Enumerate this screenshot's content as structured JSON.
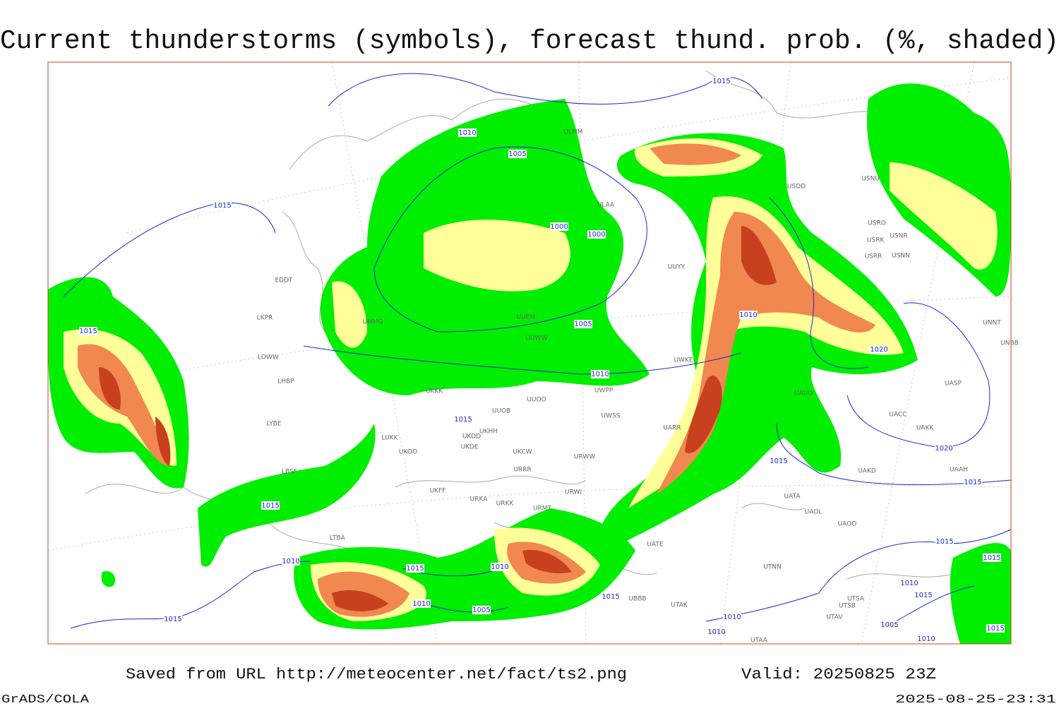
{
  "header": {
    "title": "Current thunderstorms (symbols), forecast thund. prob. (%, shaded)"
  },
  "footer": {
    "source": "Saved from URL http://meteocenter.net/fact/ts2.png",
    "valid": "Valid: 20250825 23Z",
    "software": "GrADS/COLA",
    "timestamp": "2025-08-25-23:31"
  },
  "stations": [
    "ULMM",
    "ULAA",
    "UUYY",
    "UUEM",
    "UUWW",
    "UMMG",
    "EDDT",
    "LKPR",
    "LOWW",
    "LHBP",
    "LYBE",
    "LBSF",
    "LTBA",
    "UKKK",
    "UUOB",
    "UUOO",
    "LUKK",
    "UKOO",
    "UKHH",
    "UKDD",
    "UKDE",
    "UKCW",
    "URRR",
    "UKFF",
    "URKA",
    "URKK",
    "URWI",
    "URMT",
    "UWPP",
    "UWSS",
    "URWW",
    "UWKE",
    "UARR",
    "UATE",
    "UATA",
    "UAOL",
    "UAOO",
    "UTNN",
    "UBBB",
    "UTAK",
    "UTSA",
    "UTSB",
    "UTAV",
    "UTAA",
    "UAKD",
    "UAAH",
    "UACC",
    "UAKK",
    "UASP",
    "UNNT",
    "UNBB",
    "USRR",
    "USRK",
    "USRO",
    "USNR",
    "USNN",
    "USNU",
    "USDD",
    "UAUU"
  ],
  "isobar_labels": [
    1015,
    1010,
    1005,
    1000,
    1000,
    1015,
    1015,
    1005,
    1010,
    1010,
    1020,
    1015,
    1020,
    1015,
    1015,
    1015,
    1010,
    1015,
    1015,
    1010,
    1005,
    1015,
    1015,
    1010,
    1010,
    1015,
    1010,
    1015,
    1005,
    1010,
    1015,
    1010
  ]
}
